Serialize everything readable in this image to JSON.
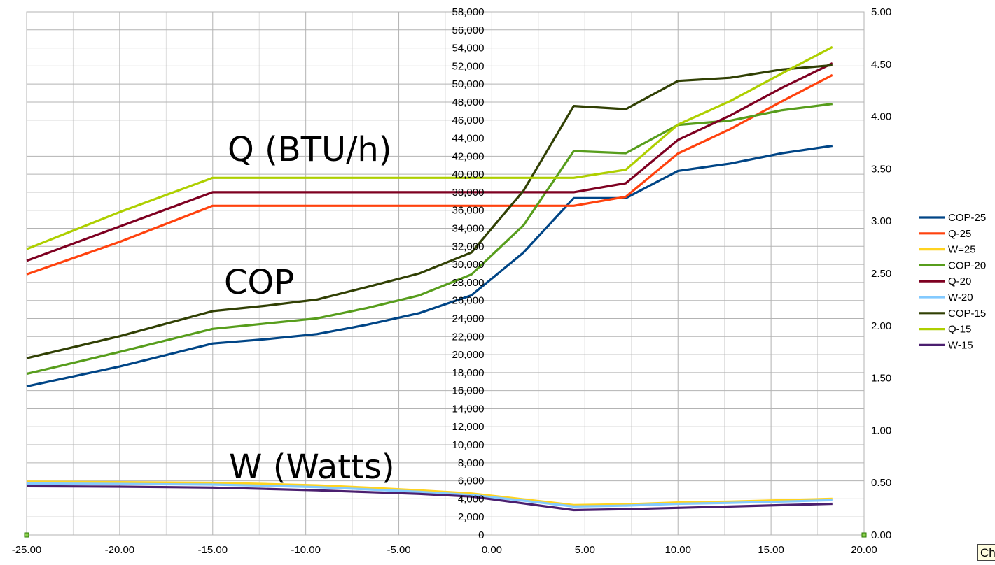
{
  "chart_data": {
    "type": "line",
    "x_axis": {
      "min": -25,
      "max": 20,
      "ticks": [
        "-25.00",
        "-20.00",
        "-15.00",
        "-10.00",
        "-5.00",
        "0.00",
        "5.00",
        "10.00",
        "15.00",
        "20.00"
      ]
    },
    "y_left": {
      "min": 0,
      "max": 58000,
      "ticks": [
        "0",
        "2,000",
        "4,000",
        "6,000",
        "8,000",
        "10,000",
        "12,000",
        "14,000",
        "16,000",
        "18,000",
        "20,000",
        "22,000",
        "24,000",
        "26,000",
        "28,000",
        "30,000",
        "32,000",
        "34,000",
        "36,000",
        "38,000",
        "40,000",
        "42,000",
        "44,000",
        "46,000",
        "48,000",
        "50,000",
        "52,000",
        "54,000",
        "56,000",
        "58,000"
      ]
    },
    "y_right": {
      "min": 0,
      "max": 5,
      "ticks": [
        "0.00",
        "0.50",
        "1.00",
        "1.50",
        "2.00",
        "2.50",
        "3.00",
        "3.50",
        "4.00",
        "4.50",
        "5.00"
      ]
    },
    "grid": true,
    "legend_position": "right",
    "annotations": [
      "Q (BTU/h)",
      "COP",
      "W (Watts)"
    ],
    "x": [
      -25,
      -20,
      -15,
      -12.2,
      -9.4,
      -6.7,
      -3.9,
      -1.1,
      1.7,
      4.4,
      7.2,
      10,
      12.8,
      15.6,
      18.3
    ],
    "series": [
      {
        "name": "COP-25",
        "axis": "right",
        "color": "#004586",
        "values": [
          1.42,
          1.61,
          1.83,
          1.87,
          1.92,
          2.01,
          2.12,
          2.29,
          2.7,
          3.22,
          3.22,
          3.48,
          3.55,
          3.65,
          3.72
        ]
      },
      {
        "name": "Q-25",
        "axis": "left",
        "color": "#ff420e",
        "values": [
          28900,
          32500,
          36500,
          36500,
          36500,
          36500,
          36500,
          36500,
          36500,
          36500,
          37500,
          42300,
          45000,
          48100,
          51000
        ]
      },
      {
        "name": "W=25",
        "axis": "left",
        "color": "#ffd320",
        "values": [
          5900,
          5850,
          5780,
          5650,
          5500,
          5250,
          4950,
          4600,
          3950,
          3300,
          3400,
          3600,
          3700,
          3850,
          4000
        ]
      },
      {
        "name": "COP-20",
        "axis": "right",
        "color": "#579d1c",
        "values": [
          1.54,
          1.75,
          1.97,
          2.02,
          2.07,
          2.17,
          2.29,
          2.49,
          2.96,
          3.67,
          3.65,
          3.92,
          3.96,
          4.06,
          4.12
        ]
      },
      {
        "name": "Q-20",
        "axis": "left",
        "color": "#7e0021",
        "values": [
          30400,
          34200,
          38000,
          38000,
          38000,
          38000,
          38000,
          38000,
          38000,
          38000,
          39000,
          43800,
          46500,
          49600,
          52300
        ]
      },
      {
        "name": "W-20",
        "axis": "left",
        "color": "#83caff",
        "values": [
          5700,
          5650,
          5580,
          5450,
          5300,
          5050,
          4780,
          4430,
          3800,
          3150,
          3250,
          3450,
          3550,
          3700,
          3850
        ]
      },
      {
        "name": "COP-15",
        "axis": "right",
        "color": "#314004",
        "values": [
          1.69,
          1.9,
          2.14,
          2.19,
          2.25,
          2.37,
          2.5,
          2.7,
          3.29,
          4.1,
          4.07,
          4.34,
          4.37,
          4.45,
          4.49
        ]
      },
      {
        "name": "Q-15",
        "axis": "left",
        "color": "#aecf00",
        "values": [
          31700,
          35800,
          39600,
          39600,
          39600,
          39600,
          39600,
          39600,
          39600,
          39600,
          40500,
          45500,
          48100,
          51200,
          54100
        ]
      },
      {
        "name": "W-15",
        "axis": "left",
        "color": "#4b1f6f",
        "values": [
          5400,
          5350,
          5250,
          5100,
          4950,
          4750,
          4550,
          4250,
          3500,
          2750,
          2850,
          3000,
          3150,
          3300,
          3450
        ]
      }
    ]
  },
  "ui": {
    "corner_tab_label": "Ch"
  }
}
